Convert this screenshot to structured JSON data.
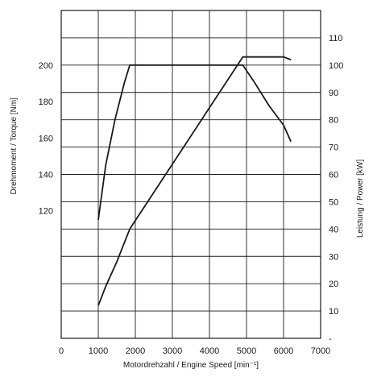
{
  "chart_data": {
    "type": "line",
    "xlabel": "Motordrehzahl / Engine Speed [min⁻¹]",
    "ylabel_left": "Drehmoment / Torque [Nm]",
    "ylabel_right": "Leistung / Power [kW]",
    "x_ticks": [
      "0",
      "1000",
      "2000",
      "3000",
      "4000",
      "5000",
      "6000",
      "7000"
    ],
    "x_tick_values": [
      0,
      1000,
      2000,
      3000,
      4000,
      5000,
      6000,
      7000
    ],
    "xlim": [
      0,
      7000
    ],
    "y_left_ticks": [
      "120",
      "140",
      "160",
      "180",
      "200"
    ],
    "y_left_tick_values": [
      120,
      140,
      160,
      180,
      200
    ],
    "y_left_lim": [
      50,
      230
    ],
    "y_right_ticks": [
      "-",
      "10",
      "20",
      "30",
      "40",
      "50",
      "60",
      "70",
      "80",
      "90",
      "100",
      "110"
    ],
    "y_right_tick_values": [
      0,
      10,
      20,
      30,
      40,
      50,
      60,
      70,
      80,
      90,
      100,
      110
    ],
    "y_right_lim": [
      0,
      120
    ],
    "grid": true,
    "series": [
      {
        "axis": "left",
        "x": [
          1000,
          1200,
          1450,
          1700,
          1850,
          4900,
          5200,
          5600,
          6000,
          6200
        ],
        "values": [
          115,
          145,
          170,
          190,
          200,
          200,
          191,
          178,
          167,
          158
        ]
      },
      {
        "axis": "right",
        "x": [
          1000,
          1200,
          1500,
          1850,
          4900,
          5000,
          6000,
          6200
        ],
        "values": [
          12,
          19,
          28,
          40,
          103,
          103,
          103,
          102
        ]
      }
    ]
  }
}
